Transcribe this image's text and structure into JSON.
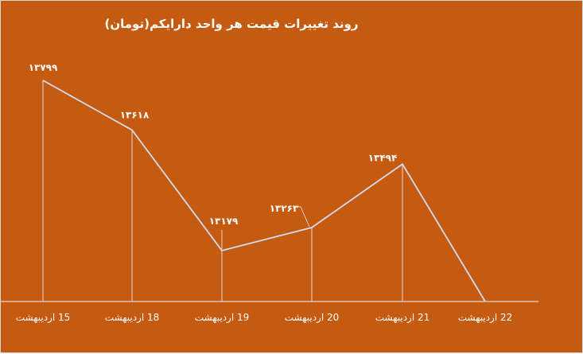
{
  "chart_data": {
    "type": "line",
    "title": "روند تغییرات قیمت هر واحد دارایکم(تومان)",
    "categories": [
      "15 اردیبهشت",
      "18 اردیبهشت",
      "19 اردیبهشت",
      "20 اردیبهشت",
      "21 اردیبهشت",
      "22 اردیبهشت"
    ],
    "values": [
      13799,
      13618,
      13179,
      13263,
      13494,
      null
    ],
    "data_labels": [
      "۱۳۷۹۹",
      "۱۳۶۱۸",
      "۱۳۱۷۹",
      "۱۳۲۶۳",
      "۱۳۴۹۴",
      ""
    ],
    "xlabel": "",
    "ylabel": "",
    "y_axis_visible": false,
    "grid": false,
    "drop_lines": true,
    "colors": {
      "background": "#c55a11",
      "line": "#d6dcee",
      "text": "#ffffff",
      "axis": "#f2f2f2"
    }
  }
}
